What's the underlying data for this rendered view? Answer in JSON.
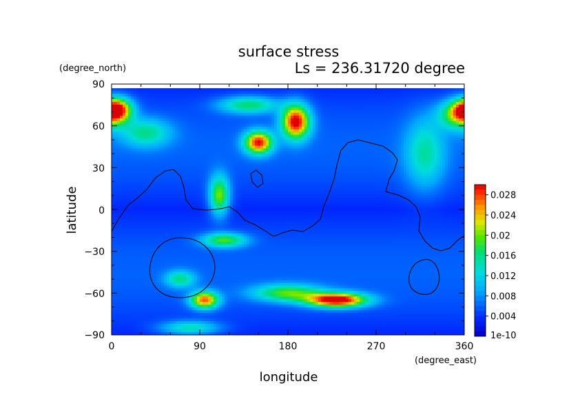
{
  "chart_data": {
    "type": "heatmap",
    "title": "surface stress",
    "subtitle": "Ls = 236.31720 degree",
    "xlabel": "longitude",
    "ylabel": "latitude",
    "x_unit": "(degree_east)",
    "y_unit": "(degree_north)",
    "xlim": [
      0,
      360
    ],
    "ylim": [
      -90,
      90
    ],
    "x_ticks": [
      "0",
      "90",
      "180",
      "270",
      "360"
    ],
    "y_ticks": [
      "90",
      "60",
      "30",
      "0",
      "−30",
      "−60",
      "−90"
    ],
    "x_tick_values": [
      0,
      90,
      180,
      270,
      360
    ],
    "y_tick_values": [
      90,
      60,
      30,
      0,
      -30,
      -60,
      -90
    ],
    "colorbar": {
      "min_label": "1e-10",
      "labels": [
        "0.028",
        "0.024",
        "0.02",
        "0.016",
        "0.012",
        "0.008",
        "0.004"
      ],
      "label_values": [
        0.028,
        0.024,
        0.02,
        0.016,
        0.012,
        0.008,
        0.004
      ],
      "vmin": 0,
      "vmax": 0.03
    },
    "hotspots": [
      {
        "lon": 5,
        "lat": 72,
        "value": 0.022,
        "slon": 15,
        "slat": 8
      },
      {
        "lon": 355,
        "lat": 68,
        "value": 0.016,
        "slon": 20,
        "slat": 10
      },
      {
        "lon": 188,
        "lat": 63,
        "value": 0.026,
        "slon": 14,
        "slat": 12
      },
      {
        "lon": 150,
        "lat": 48,
        "value": 0.024,
        "slon": 14,
        "slat": 8
      },
      {
        "lon": 140,
        "lat": 75,
        "value": 0.012,
        "slon": 30,
        "slat": 6
      },
      {
        "lon": 110,
        "lat": 10,
        "value": 0.016,
        "slon": 10,
        "slat": 14
      },
      {
        "lon": 115,
        "lat": -22,
        "value": 0.014,
        "slon": 22,
        "slat": 5
      },
      {
        "lon": 95,
        "lat": -65,
        "value": 0.022,
        "slon": 14,
        "slat": 6
      },
      {
        "lon": 230,
        "lat": -65,
        "value": 0.028,
        "slon": 30,
        "slat": 5
      },
      {
        "lon": 180,
        "lat": -60,
        "value": 0.014,
        "slon": 35,
        "slat": 6
      },
      {
        "lon": 70,
        "lat": -50,
        "value": 0.01,
        "slon": 15,
        "slat": 6
      },
      {
        "lon": 35,
        "lat": 55,
        "value": 0.01,
        "slon": 25,
        "slat": 10
      },
      {
        "lon": 80,
        "lat": -85,
        "value": 0.01,
        "slon": 30,
        "slat": 5
      },
      {
        "lon": 320,
        "lat": 40,
        "value": 0.009,
        "slon": 20,
        "slat": 25
      }
    ]
  }
}
